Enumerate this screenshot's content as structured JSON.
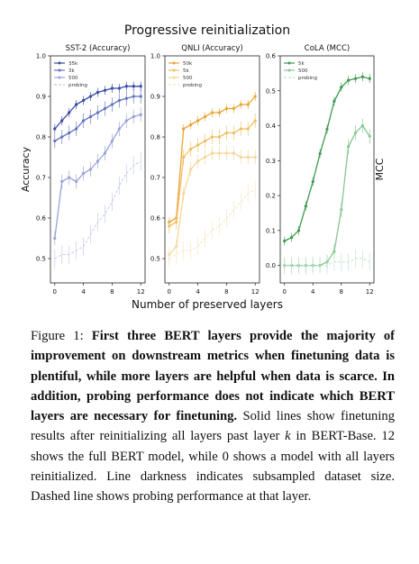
{
  "figure": {
    "suptitle": "Progressive reinitialization",
    "xlabel": "Number of preserved layers"
  },
  "chart_data": [
    {
      "type": "line",
      "title": "SST-2 (Accuracy)",
      "ylabel": "Accuracy",
      "ylabel_side": "left",
      "xlabel": "Number of preserved layers",
      "x": [
        0,
        1,
        2,
        3,
        4,
        5,
        6,
        7,
        8,
        9,
        10,
        11,
        12
      ],
      "xticks": [
        0,
        4,
        8,
        12
      ],
      "ylim": [
        0.44,
        1.0
      ],
      "yticks": [
        "0.5",
        "0.6",
        "0.7",
        "0.8",
        "0.9",
        "1.0"
      ],
      "ytick_values": [
        0.5,
        0.6,
        0.7,
        0.8,
        0.9,
        1.0
      ],
      "grid": false,
      "legend": "top-left",
      "series": [
        {
          "name": "35k",
          "color": "#3a4aa8",
          "style": "solid",
          "values": [
            0.82,
            0.84,
            0.86,
            0.88,
            0.89,
            0.9,
            0.91,
            0.915,
            0.92,
            0.92,
            0.925,
            0.925,
            0.925
          ]
        },
        {
          "name": "3k",
          "color": "#6474c0",
          "style": "solid",
          "values": [
            0.79,
            0.8,
            0.81,
            0.82,
            0.84,
            0.85,
            0.86,
            0.87,
            0.88,
            0.89,
            0.895,
            0.9,
            0.9
          ]
        },
        {
          "name": "500",
          "color": "#98a3d6",
          "style": "solid",
          "values": [
            0.55,
            0.69,
            0.7,
            0.69,
            0.71,
            0.72,
            0.74,
            0.76,
            0.79,
            0.82,
            0.84,
            0.85,
            0.855
          ]
        },
        {
          "name": "probing",
          "color": "#c3c9e8",
          "style": "dashed",
          "values": [
            0.5,
            0.51,
            0.51,
            0.52,
            0.53,
            0.56,
            0.59,
            0.61,
            0.64,
            0.68,
            0.71,
            0.73,
            0.74
          ]
        }
      ]
    },
    {
      "type": "line",
      "title": "QNLI (Accuracy)",
      "ylabel": "",
      "xlabel": "Number of preserved layers",
      "x": [
        0,
        1,
        2,
        3,
        4,
        5,
        6,
        7,
        8,
        9,
        10,
        11,
        12
      ],
      "xticks": [
        0,
        4,
        8,
        12
      ],
      "ylim": [
        0.44,
        1.0
      ],
      "yticks": [
        "0.5",
        "0.6",
        "0.7",
        "0.8",
        "0.9",
        "1.0"
      ],
      "ytick_values": [
        0.5,
        0.6,
        0.7,
        0.8,
        0.9,
        1.0
      ],
      "grid": false,
      "legend": "top-left",
      "series": [
        {
          "name": "50k",
          "color": "#e9a530",
          "style": "solid",
          "values": [
            0.59,
            0.6,
            0.82,
            0.83,
            0.84,
            0.85,
            0.86,
            0.86,
            0.87,
            0.87,
            0.88,
            0.88,
            0.9
          ]
        },
        {
          "name": "5k",
          "color": "#f0be62",
          "style": "solid",
          "values": [
            0.58,
            0.59,
            0.75,
            0.77,
            0.78,
            0.79,
            0.8,
            0.8,
            0.81,
            0.81,
            0.82,
            0.82,
            0.84
          ]
        },
        {
          "name": "500",
          "color": "#f6d59a",
          "style": "solid",
          "values": [
            0.51,
            0.53,
            0.66,
            0.72,
            0.74,
            0.75,
            0.76,
            0.76,
            0.76,
            0.76,
            0.75,
            0.75,
            0.75
          ]
        },
        {
          "name": "probing",
          "color": "#f9e5c2",
          "style": "dashed",
          "values": [
            0.5,
            0.51,
            0.52,
            0.52,
            0.53,
            0.55,
            0.57,
            0.58,
            0.6,
            0.62,
            0.64,
            0.66,
            0.67
          ]
        }
      ]
    },
    {
      "type": "line",
      "title": "CoLA (MCC)",
      "ylabel": "MCC",
      "ylabel_side": "right",
      "xlabel": "Number of preserved layers",
      "x": [
        0,
        1,
        2,
        3,
        4,
        5,
        6,
        7,
        8,
        9,
        10,
        11,
        12
      ],
      "xticks": [
        0,
        4,
        8,
        12
      ],
      "ylim": [
        -0.05,
        0.6
      ],
      "yticks": [
        "0.0",
        "0.1",
        "0.2",
        "0.3",
        "0.4",
        "0.5",
        "0.6"
      ],
      "ytick_values": [
        0.0,
        0.1,
        0.2,
        0.3,
        0.4,
        0.5,
        0.6
      ],
      "grid": false,
      "legend": "top-left",
      "series": [
        {
          "name": "5k",
          "color": "#3e9a4e",
          "style": "solid",
          "values": [
            0.07,
            0.08,
            0.1,
            0.17,
            0.24,
            0.32,
            0.39,
            0.47,
            0.51,
            0.53,
            0.535,
            0.54,
            0.535
          ]
        },
        {
          "name": "500",
          "color": "#86c791",
          "style": "solid",
          "values": [
            0.0,
            0.0,
            0.0,
            0.0,
            0.0,
            0.0,
            0.01,
            0.04,
            0.16,
            0.34,
            0.38,
            0.4,
            0.37
          ]
        },
        {
          "name": "probing",
          "color": "#c4e3c9",
          "style": "dashed",
          "values": [
            0.0,
            0.0,
            0.0,
            0.0,
            0.0,
            0.0,
            0.0,
            0.01,
            0.01,
            0.01,
            0.02,
            0.02,
            0.01
          ]
        }
      ]
    }
  ],
  "caption": {
    "label": "Figure 1:",
    "bold": "First three BERT layers provide the majority of improvement on downstream metrics when finetuning data is plentiful, while more layers are helpful when data is scarce. In addition, probing performance does not indicate which BERT layers are necessary for finetuning.",
    "rest_1": "Solid lines show finetuning results after reinitializing all layers past layer ",
    "k": "k",
    "rest_2": " in BERT-Base. 12 shows the full BERT model, while 0 shows a model with all layers reinitialized. Line darkness indicates subsampled dataset size. Dashed line shows probing performance at that layer."
  }
}
